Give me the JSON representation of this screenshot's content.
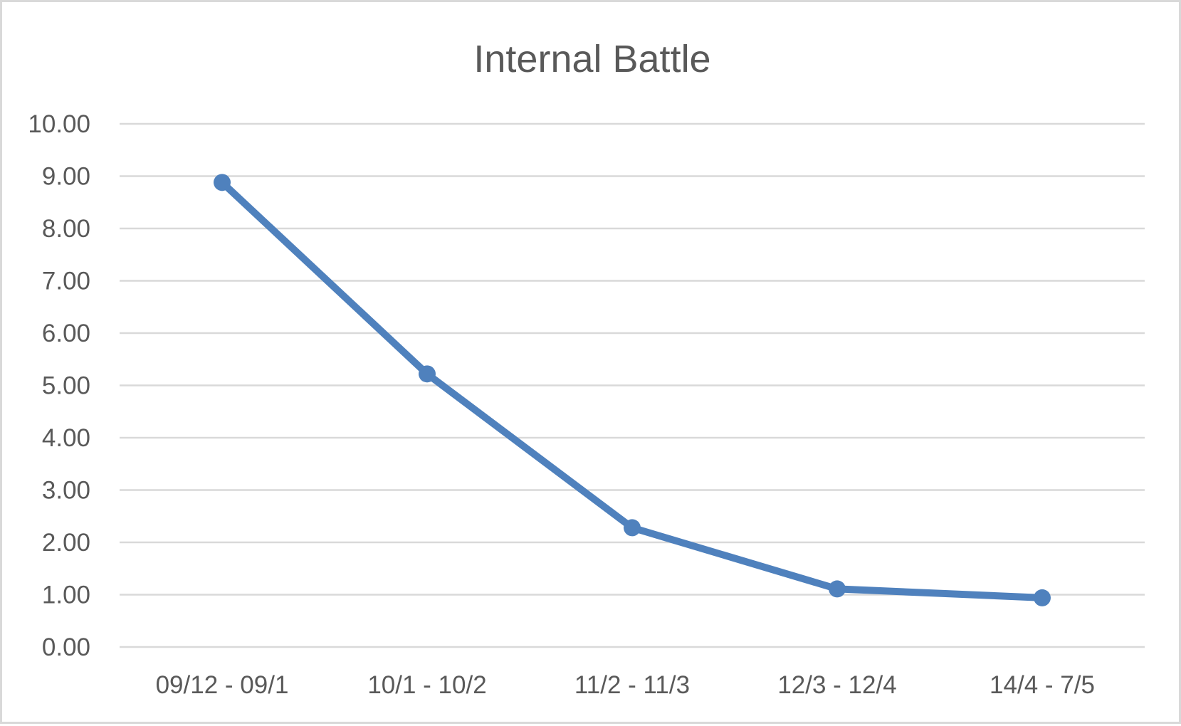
{
  "chart_data": {
    "type": "line",
    "title": "Internal Battle",
    "xlabel": "",
    "ylabel": "",
    "categories": [
      "09/12 - 09/1",
      "10/1 - 10/2",
      "11/2 - 11/3",
      "12/3 - 12/4",
      "14/4 - 7/5"
    ],
    "y_tick_labels": [
      "0.00",
      "1.00",
      "2.00",
      "3.00",
      "4.00",
      "5.00",
      "6.00",
      "7.00",
      "8.00",
      "9.00",
      "10.00"
    ],
    "ylim": [
      0,
      10
    ],
    "y_step": 1,
    "grid": true,
    "legend": "none",
    "series": [
      {
        "values": [
          8.88,
          5.22,
          2.28,
          1.11,
          0.94
        ],
        "color": "#4f81bd"
      }
    ]
  }
}
